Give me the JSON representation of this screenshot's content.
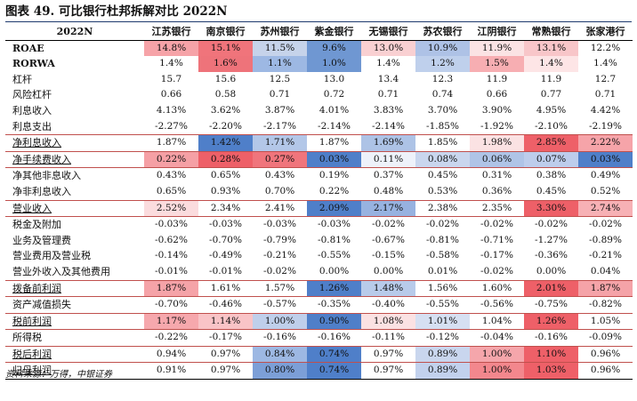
{
  "title": "图表 49. 可比银行杜邦拆解对比 2022N",
  "source": "资料来源：万得，中银证券",
  "corner_label": "2022N",
  "banks": [
    "江苏银行",
    "南京银行",
    "苏州银行",
    "紫金银行",
    "无锡银行",
    "苏农银行",
    "江阴银行",
    "常熟银行",
    "张家港行"
  ],
  "rows": [
    {
      "label": "ROAE",
      "bold": true,
      "underline": false,
      "boxed": false,
      "values": [
        "14.8%",
        "15.1%",
        "11.5%",
        "9.6%",
        "13.0%",
        "10.9%",
        "11.9%",
        "13.1%",
        "12.2%"
      ],
      "colors": [
        "#f6a3a8",
        "#f0747b",
        "#c6d3ea",
        "#6f97d2",
        "#f9d0d2",
        "#aec2e6",
        "#fbe3e4",
        "#f8c6c9",
        "#ffffff"
      ]
    },
    {
      "label": "RORWA",
      "bold": true,
      "underline": false,
      "boxed": false,
      "values": [
        "1.4%",
        "1.6%",
        "1.1%",
        "1.0%",
        "1.4%",
        "1.2%",
        "1.5%",
        "1.4%",
        "1.4%"
      ],
      "colors": [
        "#ffffff",
        "#ee737a",
        "#9db8e3",
        "#6f97d2",
        "#ffffff",
        "#bfd0ec",
        "#f7aeb2",
        "#fde5e6",
        "#ffffff"
      ]
    },
    {
      "label": "杠杆",
      "bold": false,
      "underline": false,
      "boxed": false,
      "values": [
        "15.7",
        "15.6",
        "12.5",
        "13.0",
        "13.4",
        "12.3",
        "11.9",
        "11.9",
        "12.7"
      ],
      "colors": []
    },
    {
      "label": "风险杠杆",
      "bold": false,
      "underline": false,
      "boxed": false,
      "values": [
        "0.66",
        "0.58",
        "0.71",
        "0.72",
        "0.71",
        "0.74",
        "0.66",
        "0.77",
        "0.71"
      ],
      "colors": []
    },
    {
      "label": "利息收入",
      "bold": false,
      "underline": false,
      "boxed": false,
      "values": [
        "4.13%",
        "3.62%",
        "3.87%",
        "4.01%",
        "3.83%",
        "3.70%",
        "3.90%",
        "4.95%",
        "4.42%"
      ],
      "colors": []
    },
    {
      "label": "利息支出",
      "bold": false,
      "underline": false,
      "boxed": false,
      "values": [
        "-2.27%",
        "-2.20%",
        "-2.17%",
        "-2.14%",
        "-2.14%",
        "-1.85%",
        "-1.92%",
        "-2.10%",
        "-2.19%"
      ],
      "colors": []
    },
    {
      "label": "净利息收入",
      "bold": false,
      "underline": true,
      "boxed": true,
      "values": [
        "1.87%",
        "1.42%",
        "1.71%",
        "1.87%",
        "1.69%",
        "1.85%",
        "1.98%",
        "2.85%",
        "2.22%"
      ],
      "colors": [
        "#ffffff",
        "#4f7fc9",
        "#b3c7e8",
        "#ffffff",
        "#adc3e6",
        "#ffffff",
        "#fbe2e3",
        "#ee6068",
        "#f6a4a9"
      ]
    },
    {
      "label": "净手续费收入",
      "bold": false,
      "underline": true,
      "boxed": true,
      "values": [
        "0.22%",
        "0.28%",
        "0.27%",
        "0.03%",
        "0.11%",
        "0.08%",
        "0.06%",
        "0.07%",
        "0.03%"
      ],
      "colors": [
        "#f5a0a5",
        "#ee6068",
        "#f0757c",
        "#4f7fc9",
        "#eef2fa",
        "#c9d6ee",
        "#afc4e7",
        "#bdcdec",
        "#4f7fc9"
      ]
    },
    {
      "label": "净其他非息收入",
      "bold": false,
      "underline": false,
      "boxed": false,
      "values": [
        "0.43%",
        "0.65%",
        "0.43%",
        "0.19%",
        "0.37%",
        "0.45%",
        "0.31%",
        "0.38%",
        "0.49%"
      ],
      "colors": []
    },
    {
      "label": "净非利息收入",
      "bold": false,
      "underline": false,
      "boxed": false,
      "values": [
        "0.65%",
        "0.93%",
        "0.70%",
        "0.22%",
        "0.48%",
        "0.53%",
        "0.36%",
        "0.45%",
        "0.52%"
      ],
      "colors": []
    },
    {
      "label": "营业收入",
      "bold": false,
      "underline": true,
      "boxed": true,
      "values": [
        "2.52%",
        "2.34%",
        "2.41%",
        "2.09%",
        "2.17%",
        "2.38%",
        "2.35%",
        "3.30%",
        "2.74%"
      ],
      "colors": [
        "#fbdcde",
        "#ffffff",
        "#ffffff",
        "#4f7fc9",
        "#97b2e0",
        "#ffffff",
        "#ffffff",
        "#ee6068",
        "#f7b1b5"
      ]
    },
    {
      "label": "税金及附加",
      "bold": false,
      "underline": false,
      "boxed": false,
      "values": [
        "-0.03%",
        "-0.03%",
        "-0.03%",
        "-0.03%",
        "-0.02%",
        "-0.02%",
        "-0.02%",
        "-0.02%",
        "-0.02%"
      ],
      "colors": []
    },
    {
      "label": "业务及管理费",
      "bold": false,
      "underline": false,
      "boxed": false,
      "values": [
        "-0.62%",
        "-0.70%",
        "-0.79%",
        "-0.81%",
        "-0.67%",
        "-0.81%",
        "-0.71%",
        "-1.27%",
        "-0.89%"
      ],
      "colors": []
    },
    {
      "label": "营业费用及营业税",
      "bold": false,
      "underline": false,
      "boxed": false,
      "values": [
        "-0.14%",
        "-0.49%",
        "-0.21%",
        "-0.55%",
        "-0.15%",
        "-0.58%",
        "-0.17%",
        "-0.36%",
        "-0.21%"
      ],
      "colors": []
    },
    {
      "label": "营业外收入及其他费用",
      "bold": false,
      "underline": false,
      "boxed": false,
      "values": [
        "-0.01%",
        "-0.01%",
        "-0.02%",
        "0.00%",
        "0.00%",
        "0.01%",
        "-0.02%",
        "0.00%",
        "0.04%"
      ],
      "colors": []
    },
    {
      "label": "拨备前利润",
      "bold": false,
      "underline": true,
      "boxed": true,
      "values": [
        "1.87%",
        "1.61%",
        "1.57%",
        "1.26%",
        "1.48%",
        "1.56%",
        "1.60%",
        "2.01%",
        "1.87%"
      ],
      "colors": [
        "#f5a3a8",
        "#ffffff",
        "#ffffff",
        "#4f7fc9",
        "#b8cbea",
        "#ffffff",
        "#ffffff",
        "#ee6068",
        "#f5a3a8"
      ]
    },
    {
      "label": "资产减值损失",
      "bold": false,
      "underline": false,
      "boxed": false,
      "values": [
        "-0.70%",
        "-0.46%",
        "-0.57%",
        "-0.35%",
        "-0.40%",
        "-0.55%",
        "-0.56%",
        "-0.75%",
        "-0.82%"
      ],
      "colors": []
    },
    {
      "label": "税前利润",
      "bold": false,
      "underline": true,
      "boxed": true,
      "values": [
        "1.17%",
        "1.14%",
        "1.00%",
        "0.90%",
        "1.08%",
        "1.01%",
        "1.04%",
        "1.26%",
        "1.05%"
      ],
      "colors": [
        "#f6a8ad",
        "#f9c4c7",
        "#bfcfeb",
        "#4f7fc9",
        "#fbe2e3",
        "#d6e0f2",
        "#ffffff",
        "#ee6068",
        "#ffffff"
      ]
    },
    {
      "label": "所得税",
      "bold": false,
      "underline": false,
      "boxed": false,
      "values": [
        "-0.22%",
        "-0.17%",
        "-0.16%",
        "-0.16%",
        "-0.11%",
        "-0.12%",
        "-0.04%",
        "-0.16%",
        "-0.09%"
      ],
      "colors": []
    },
    {
      "label": "税后利润",
      "bold": false,
      "underline": true,
      "boxed": true,
      "values": [
        "0.94%",
        "0.97%",
        "0.84%",
        "0.74%",
        "0.97%",
        "0.89%",
        "1.00%",
        "1.10%",
        "0.96%"
      ],
      "colors": [
        "#ffffff",
        "#ffffff",
        "#9db8e3",
        "#4f7fc9",
        "#ffffff",
        "#c9d6ee",
        "#f5a6ab",
        "#ee6068",
        "#ffffff"
      ]
    },
    {
      "label": "归母利润",
      "bold": false,
      "underline": true,
      "boxed": true,
      "values": [
        "0.91%",
        "0.97%",
        "0.80%",
        "0.74%",
        "0.97%",
        "0.89%",
        "1.00%",
        "1.03%",
        "0.96%"
      ],
      "colors": [
        "#ffffff",
        "#ffffff",
        "#7c9fd7",
        "#4f7fc9",
        "#ffffff",
        "#c2d1ed",
        "#f3878d",
        "#ee6068",
        "#ffffff"
      ]
    }
  ]
}
